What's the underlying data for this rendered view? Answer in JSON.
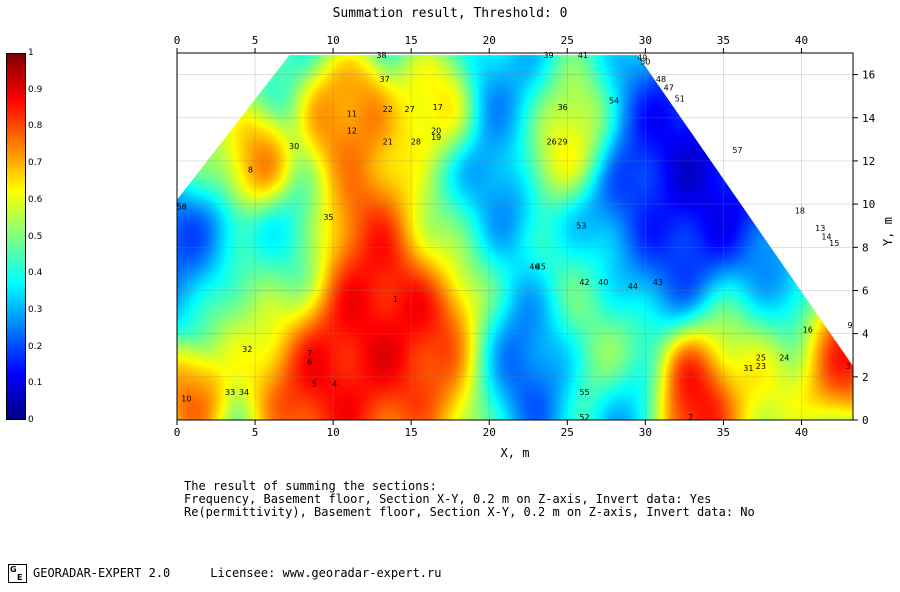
{
  "title": "Summation result, Threshold: 0",
  "caption": {
    "heading": "The result of summing the sections:",
    "line1": "Frequency, Basement floor, Section X-Y, 0.2 m on Z-axis, Invert data: Yes",
    "line2": "Re(permittivity), Basement floor, Section X-Y, 0.2 m on Z-axis, Invert data: No"
  },
  "footer": {
    "logo_text": "GE",
    "app_name": "GEORADAR-EXPERT 2.0",
    "licensee": "Licensee: www.georadar-expert.ru"
  },
  "colors": {
    "scale": [
      "#00007f",
      "#0000ff",
      "#007fff",
      "#00ffff",
      "#7fff7f",
      "#ffff00",
      "#ff7f00",
      "#ff0000",
      "#7f0000"
    ]
  },
  "chart_data": {
    "type": "heatmap",
    "xlabel": "X, m",
    "ylabel": "Y, m",
    "xlim": [
      0,
      43.3
    ],
    "ylim": [
      0,
      17
    ],
    "x_ticks": [
      0,
      5,
      10,
      15,
      20,
      25,
      30,
      35,
      40
    ],
    "y_ticks": [
      0,
      2,
      4,
      6,
      8,
      10,
      12,
      14,
      16
    ],
    "colorbar_ticks": [
      "0",
      "0.1",
      "0.2",
      "0.3",
      "0.4",
      "0.5",
      "0.6",
      "0.7",
      "0.8",
      "0.9",
      "1"
    ],
    "colorbar_range": [
      0,
      1
    ],
    "grid": true,
    "outline": [
      [
        0,
        10.2
      ],
      [
        7.2,
        16.9
      ],
      [
        29.5,
        16.9
      ],
      [
        43.3,
        2.5
      ],
      [
        43.3,
        0
      ],
      [
        0,
        0
      ]
    ],
    "hotspots": [
      {
        "x": 14,
        "y": 5.5,
        "v": 0.95,
        "r": 3.5
      },
      {
        "x": 9.5,
        "y": 2.0,
        "v": 0.92,
        "r": 2.2
      },
      {
        "x": 4.6,
        "y": 11.6,
        "v": 0.85,
        "r": 1.3
      },
      {
        "x": 11,
        "y": 14,
        "v": 0.8,
        "r": 1.4
      },
      {
        "x": 16.5,
        "y": 14,
        "v": 0.7,
        "r": 1.4
      },
      {
        "x": 32.8,
        "y": 1.0,
        "v": 0.98,
        "r": 1.6
      },
      {
        "x": 42.5,
        "y": 3.5,
        "v": 0.92,
        "r": 1.6
      },
      {
        "x": 24.5,
        "y": 13,
        "v": 0.7,
        "r": 1.6
      },
      {
        "x": 0.8,
        "y": 1.0,
        "v": 0.8,
        "r": 1.2
      },
      {
        "x": 41,
        "y": 8.5,
        "v": 0.72,
        "r": 1.2
      },
      {
        "x": 5,
        "y": 6,
        "v": 0.65,
        "r": 2.0
      },
      {
        "x": 26,
        "y": 5.5,
        "v": 0.65,
        "r": 2.0
      },
      {
        "x": 37,
        "y": 3,
        "v": 0.7,
        "r": 2.0
      },
      {
        "x": 28,
        "y": 2.5,
        "v": 0.6,
        "r": 1.8
      },
      {
        "x": 2,
        "y": 12.5,
        "v": 0.55,
        "r": 1.6
      },
      {
        "x": 17,
        "y": 9,
        "v": 0.55,
        "r": 1.6
      }
    ],
    "coldspots": [
      {
        "x": 33.5,
        "y": 11.5,
        "v": 0.05,
        "r": 3.0
      },
      {
        "x": 19,
        "y": 10,
        "v": 0.15,
        "r": 2.0
      },
      {
        "x": 23,
        "y": 3.5,
        "v": 0.12,
        "r": 2.2
      },
      {
        "x": 1.5,
        "y": 8.5,
        "v": 0.15,
        "r": 2.0
      },
      {
        "x": 6.5,
        "y": 7.5,
        "v": 0.25,
        "r": 1.8
      },
      {
        "x": 28.5,
        "y": 7.5,
        "v": 0.18,
        "r": 2.5
      },
      {
        "x": 38.5,
        "y": 6,
        "v": 0.2,
        "r": 2.0
      },
      {
        "x": 29,
        "y": 0.8,
        "v": 0.15,
        "r": 1.4
      },
      {
        "x": 21.5,
        "y": 14.5,
        "v": 0.25,
        "r": 1.6
      }
    ],
    "labels": [
      {
        "text": "38",
        "x": 13.1,
        "y": 16.9
      },
      {
        "text": "39",
        "x": 23.8,
        "y": 16.9
      },
      {
        "text": "41",
        "x": 26.0,
        "y": 16.9
      },
      {
        "text": "49",
        "x": 29.8,
        "y": 16.8
      },
      {
        "text": "50",
        "x": 30.0,
        "y": 16.6
      },
      {
        "text": "48",
        "x": 31.0,
        "y": 15.8
      },
      {
        "text": "47",
        "x": 31.5,
        "y": 15.4
      },
      {
        "text": "51",
        "x": 32.2,
        "y": 14.9
      },
      {
        "text": "37",
        "x": 13.3,
        "y": 15.8
      },
      {
        "text": "54",
        "x": 28.0,
        "y": 14.8
      },
      {
        "text": "36",
        "x": 24.7,
        "y": 14.5
      },
      {
        "text": "11",
        "x": 11.2,
        "y": 14.2
      },
      {
        "text": "22",
        "x": 13.5,
        "y": 14.4
      },
      {
        "text": "27",
        "x": 14.9,
        "y": 14.4
      },
      {
        "text": "17",
        "x": 16.7,
        "y": 14.5
      },
      {
        "text": "12",
        "x": 11.2,
        "y": 13.4
      },
      {
        "text": "20",
        "x": 16.6,
        "y": 13.4
      },
      {
        "text": "19",
        "x": 16.6,
        "y": 13.1
      },
      {
        "text": "21",
        "x": 13.5,
        "y": 12.9
      },
      {
        "text": "28",
        "x": 15.3,
        "y": 12.9
      },
      {
        "text": "26",
        "x": 24.0,
        "y": 12.9
      },
      {
        "text": "29",
        "x": 24.7,
        "y": 12.9
      },
      {
        "text": "30",
        "x": 7.5,
        "y": 12.7
      },
      {
        "text": "57",
        "x": 35.9,
        "y": 12.5
      },
      {
        "text": "8",
        "x": 4.7,
        "y": 11.6
      },
      {
        "text": "18",
        "x": 39.9,
        "y": 9.7
      },
      {
        "text": "58",
        "x": 0.3,
        "y": 9.9
      },
      {
        "text": "35",
        "x": 9.7,
        "y": 9.4
      },
      {
        "text": "53",
        "x": 25.9,
        "y": 9.0
      },
      {
        "text": "13",
        "x": 41.2,
        "y": 8.9
      },
      {
        "text": "14",
        "x": 41.6,
        "y": 8.5
      },
      {
        "text": "15",
        "x": 42.1,
        "y": 8.2
      },
      {
        "text": "46",
        "x": 22.9,
        "y": 7.1
      },
      {
        "text": "45",
        "x": 23.3,
        "y": 7.1
      },
      {
        "text": "42",
        "x": 26.1,
        "y": 6.4
      },
      {
        "text": "40",
        "x": 27.3,
        "y": 6.4
      },
      {
        "text": "44",
        "x": 29.2,
        "y": 6.2
      },
      {
        "text": "43",
        "x": 30.8,
        "y": 6.4
      },
      {
        "text": "1",
        "x": 14.0,
        "y": 5.6
      },
      {
        "text": "9",
        "x": 43.1,
        "y": 4.4
      },
      {
        "text": "16",
        "x": 40.4,
        "y": 4.2
      },
      {
        "text": "32",
        "x": 4.5,
        "y": 3.3
      },
      {
        "text": "7",
        "x": 8.5,
        "y": 3.1
      },
      {
        "text": "6",
        "x": 8.5,
        "y": 2.7
      },
      {
        "text": "25",
        "x": 37.4,
        "y": 2.9
      },
      {
        "text": "24",
        "x": 38.9,
        "y": 2.9
      },
      {
        "text": "31",
        "x": 36.6,
        "y": 2.4
      },
      {
        "text": "23",
        "x": 37.4,
        "y": 2.5
      },
      {
        "text": "3",
        "x": 43.0,
        "y": 2.5
      },
      {
        "text": "5",
        "x": 8.8,
        "y": 1.7
      },
      {
        "text": "4",
        "x": 10.1,
        "y": 1.7
      },
      {
        "text": "33",
        "x": 3.4,
        "y": 1.3
      },
      {
        "text": "34",
        "x": 4.3,
        "y": 1.3
      },
      {
        "text": "55",
        "x": 26.1,
        "y": 1.3
      },
      {
        "text": "10",
        "x": 0.6,
        "y": 1.0
      },
      {
        "text": "52",
        "x": 26.1,
        "y": 0.15
      },
      {
        "text": "2",
        "x": 32.9,
        "y": 0.15
      }
    ]
  }
}
